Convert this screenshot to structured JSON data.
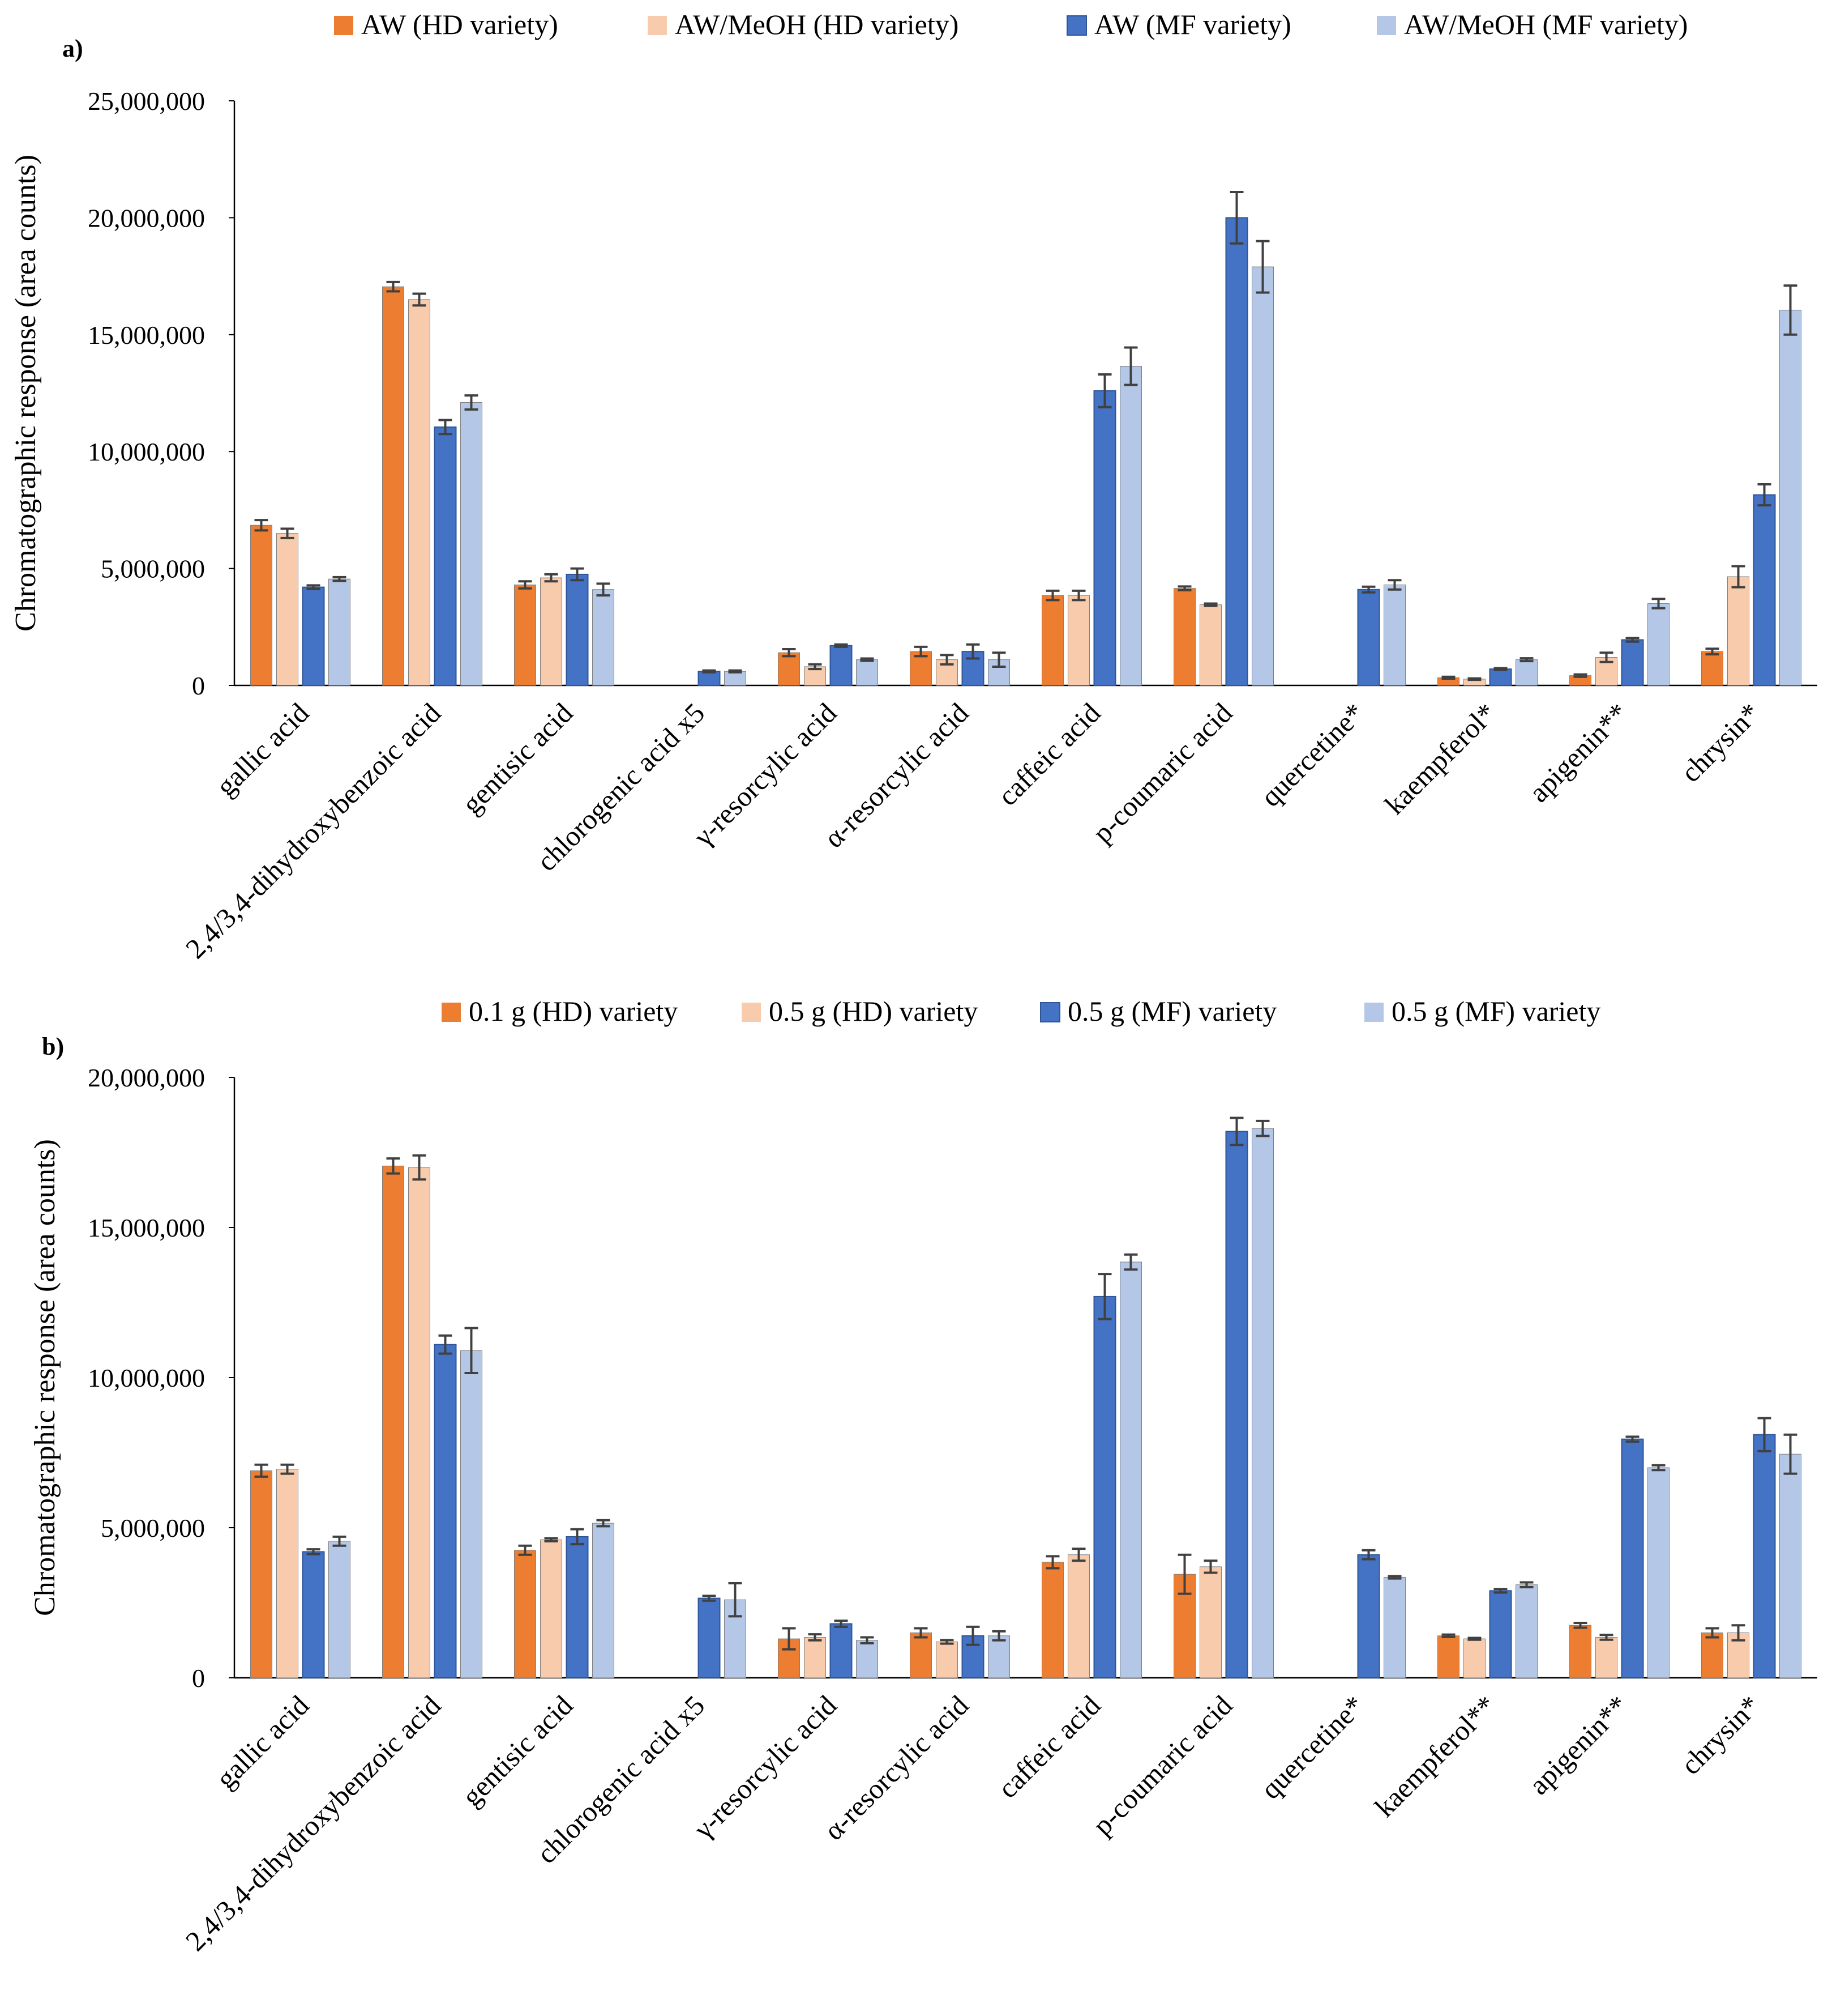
{
  "chart_data": [
    {
      "type": "bar",
      "panel_label": "a)",
      "ylabel": "Chromatographic response (area counts)",
      "ylim": [
        0,
        25000000
      ],
      "yticks": [
        0,
        5000000,
        10000000,
        15000000,
        20000000,
        25000000
      ],
      "ytick_labels": [
        "0",
        "5,000,000",
        "10,000,000",
        "15,000,000",
        "20,000,000",
        "25,000,000"
      ],
      "grid": false,
      "legend_position": "top",
      "categories": [
        "gallic acid",
        "2,4/3,4-dihydroxybenzoic acid",
        "gentisic acid",
        "chlorogenic acid x5",
        "γ-resorcylic acid",
        "α-resorcylic acid",
        "caffeic acid",
        "p-coumaric acid",
        "quercetine*",
        "kaempferol*",
        "apigenin**",
        "chrysin*"
      ],
      "series": [
        {
          "name": "AW (HD variety)",
          "color": "#ED7D31",
          "values": [
            6850000,
            17050000,
            4300000,
            null,
            1400000,
            1450000,
            3850000,
            4150000,
            null,
            330000,
            420000,
            1450000
          ],
          "errors": [
            220000,
            200000,
            150000,
            null,
            150000,
            200000,
            200000,
            80000,
            null,
            40000,
            50000,
            120000
          ]
        },
        {
          "name": "AW/MeOH (HD variety)",
          "color": "#F8CBAD",
          "values": [
            6500000,
            16500000,
            4600000,
            null,
            800000,
            1100000,
            3850000,
            3450000,
            null,
            270000,
            1200000,
            4650000
          ],
          "errors": [
            200000,
            250000,
            150000,
            null,
            100000,
            200000,
            200000,
            50000,
            null,
            30000,
            200000,
            450000
          ]
        },
        {
          "name": "AW (MF variety)",
          "color": "#4472C4",
          "values": [
            4200000,
            11050000,
            4750000,
            600000,
            1700000,
            1450000,
            12600000,
            20000000,
            4100000,
            700000,
            1950000,
            8150000
          ],
          "errors": [
            80000,
            300000,
            250000,
            40000,
            50000,
            300000,
            700000,
            1100000,
            120000,
            40000,
            80000,
            450000
          ],
          "stroke": "#2F5597"
        },
        {
          "name": "AW/MeOH (MF variety)",
          "color": "#B4C7E7",
          "values": [
            4550000,
            12100000,
            4100000,
            600000,
            1100000,
            1100000,
            13650000,
            17900000,
            4300000,
            1100000,
            3500000,
            16050000
          ],
          "errors": [
            80000,
            300000,
            250000,
            40000,
            50000,
            300000,
            800000,
            1100000,
            200000,
            60000,
            200000,
            1050000
          ]
        }
      ]
    },
    {
      "type": "bar",
      "panel_label": "b)",
      "ylabel": "Chromatographic response (area counts)",
      "ylim": [
        0,
        20000000
      ],
      "yticks": [
        0,
        5000000,
        10000000,
        15000000,
        20000000
      ],
      "ytick_labels": [
        "0",
        "5,000,000",
        "10,000,000",
        "15,000,000",
        "20,000,000"
      ],
      "grid": false,
      "legend_position": "top",
      "categories": [
        "gallic acid",
        "2,4/3,4-dihydroxybenzoic acid",
        "gentisic acid",
        "chlorogenic acid x5",
        "γ-resorcylic acid",
        "α-resorcylic acid",
        "caffeic acid",
        "p-coumaric acid",
        "quercetine*",
        "kaempferol**",
        "apigenin**",
        "chrysin*"
      ],
      "series": [
        {
          "name": "0.1 g (HD) variety",
          "color": "#ED7D31",
          "values": [
            6900000,
            17050000,
            4250000,
            null,
            1300000,
            1500000,
            3850000,
            3450000,
            null,
            1400000,
            1750000,
            1500000
          ],
          "errors": [
            200000,
            250000,
            150000,
            null,
            350000,
            150000,
            200000,
            650000,
            null,
            40000,
            80000,
            150000
          ]
        },
        {
          "name": "0.5 g (HD) variety",
          "color": "#F8CBAD",
          "values": [
            6950000,
            17000000,
            4600000,
            null,
            1350000,
            1200000,
            4100000,
            3700000,
            null,
            1300000,
            1350000,
            1500000
          ],
          "errors": [
            150000,
            400000,
            50000,
            null,
            100000,
            60000,
            200000,
            200000,
            null,
            30000,
            80000,
            250000
          ]
        },
        {
          "name": "0.5 g (MF) variety",
          "color": "#4472C4",
          "values": [
            4200000,
            11100000,
            4700000,
            2650000,
            1800000,
            1400000,
            12700000,
            18200000,
            4100000,
            2900000,
            7950000,
            8100000
          ],
          "errors": [
            80000,
            300000,
            250000,
            80000,
            100000,
            300000,
            750000,
            450000,
            150000,
            60000,
            80000,
            550000
          ],
          "stroke": "#2F5597"
        },
        {
          "name": "0.5 g (MF) variety",
          "color": "#B4C7E7",
          "values": [
            4550000,
            10900000,
            5150000,
            2600000,
            1250000,
            1400000,
            13850000,
            18300000,
            3350000,
            3100000,
            7000000,
            7450000
          ],
          "errors": [
            150000,
            750000,
            100000,
            550000,
            100000,
            150000,
            250000,
            250000,
            40000,
            80000,
            80000,
            650000
          ]
        }
      ]
    }
  ]
}
